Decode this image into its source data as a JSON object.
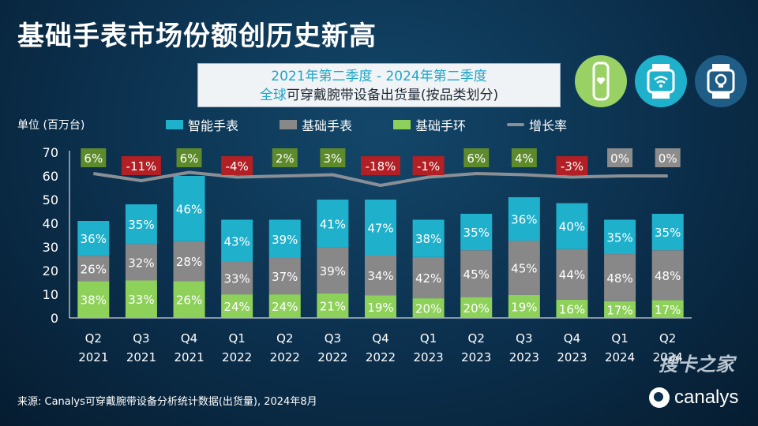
{
  "title": "基础手表市场份额创历史新高",
  "subtitle": {
    "line1": "2021年第二季度 - 2024年第二季度",
    "line2_highlight": "全球",
    "line2_rest": "可穿戴腕带设备出货量(按品类划分)"
  },
  "unit_label": "单位 (百万台)",
  "legend": [
    {
      "name": "智能手表",
      "color": "#1fb0cc",
      "kind": "box"
    },
    {
      "name": "基础手表",
      "color": "#888888",
      "kind": "box"
    },
    {
      "name": "基础手环",
      "color": "#8ed15a",
      "kind": "box"
    },
    {
      "name": "增长率",
      "color": "#8a8f96",
      "kind": "line"
    }
  ],
  "icons": [
    {
      "name": "fitness-band-icon",
      "bg": "#9ad164"
    },
    {
      "name": "basic-watch-icon",
      "bg": "#1fb0cc"
    },
    {
      "name": "smartwatch-icon",
      "bg": "#1f5d86"
    }
  ],
  "chart_data": {
    "type": "bar",
    "stacked": true,
    "categories": [
      "Q2 2021",
      "Q3 2021",
      "Q4 2021",
      "Q1 2022",
      "Q2 2022",
      "Q3 2022",
      "Q4 2022",
      "Q1 2023",
      "Q2 2023",
      "Q3 2023",
      "Q4 2023",
      "Q1 2024",
      "Q2 2024"
    ],
    "category_lines": [
      [
        "Q2",
        "2021"
      ],
      [
        "Q3",
        "2021"
      ],
      [
        "Q4",
        "2021"
      ],
      [
        "Q1",
        "2022"
      ],
      [
        "Q2",
        "2022"
      ],
      [
        "Q3",
        "2022"
      ],
      [
        "Q4",
        "2022"
      ],
      [
        "Q1",
        "2023"
      ],
      [
        "Q2",
        "2023"
      ],
      [
        "Q3",
        "2023"
      ],
      [
        "Q4",
        "2023"
      ],
      [
        "Q1",
        "2024"
      ],
      [
        "Q2",
        "2024"
      ]
    ],
    "totals": [
      41,
      48,
      60,
      41.5,
      41.5,
      49.5,
      50,
      41.5,
      44,
      51,
      48.5,
      41.5,
      44
    ],
    "series": [
      {
        "name": "基础手环",
        "color": "#8ed15a",
        "share_labels": [
          "38%",
          "33%",
          "26%",
          "24%",
          "24%",
          "21%",
          "19%",
          "20%",
          "20%",
          "19%",
          "16%",
          "17%",
          "17%"
        ],
        "shares": [
          38,
          33,
          26,
          24,
          24,
          21,
          19,
          20,
          20,
          19,
          16,
          17,
          17
        ]
      },
      {
        "name": "基础手表",
        "color": "#888888",
        "share_labels": [
          "26%",
          "32%",
          "28%",
          "33%",
          "37%",
          "39%",
          "34%",
          "42%",
          "45%",
          "45%",
          "44%",
          "48%",
          "48%"
        ],
        "shares": [
          26,
          32,
          28,
          33,
          37,
          39,
          34,
          42,
          45,
          45,
          44,
          48,
          48
        ]
      },
      {
        "name": "智能手表",
        "color": "#1fb0cc",
        "share_labels": [
          "36%",
          "35%",
          "46%",
          "43%",
          "39%",
          "41%",
          "47%",
          "38%",
          "35%",
          "36%",
          "40%",
          "35%",
          "35%"
        ],
        "shares": [
          36,
          35,
          46,
          43,
          39,
          41,
          47,
          38,
          35,
          36,
          40,
          35,
          35
        ]
      }
    ],
    "growth_rate": {
      "name": "增长率",
      "labels": [
        "6%",
        "-11%",
        "6%",
        "-4%",
        "2%",
        "3%",
        "-18%",
        "-1%",
        "6%",
        "4%",
        "-3%",
        "0%",
        "0%"
      ],
      "line_y": [
        61,
        58,
        61.5,
        59.5,
        60,
        60.5,
        56,
        59.5,
        61,
        60.5,
        59.5,
        60,
        60
      ]
    },
    "yaxis": {
      "min": 0,
      "max": 70,
      "ticks": [
        0,
        10,
        20,
        30,
        40,
        50,
        60,
        70
      ]
    },
    "grid": false
  },
  "source": "来源: Canalys可穿戴腕带设备分析统计数据(出货量), 2024年8月",
  "logo_text": "canalys",
  "watermark": "搜卡之家"
}
